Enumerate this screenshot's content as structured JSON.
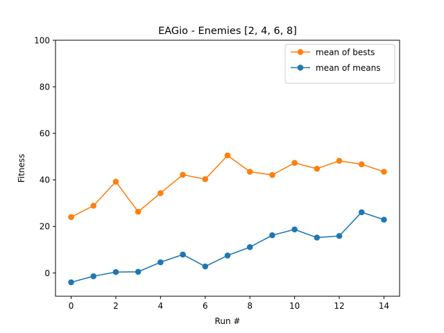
{
  "chart_data": {
    "type": "line",
    "title": "EAGio - Enemies [2, 4, 6, 8]",
    "xlabel": "Run #",
    "ylabel": "Fitness",
    "xlim": [
      -0.7,
      14.7
    ],
    "ylim": [
      -10,
      100
    ],
    "xticks": [
      0,
      2,
      4,
      6,
      8,
      10,
      12,
      14
    ],
    "yticks": [
      0,
      20,
      40,
      60,
      80,
      100
    ],
    "x": [
      0,
      1,
      2,
      3,
      4,
      5,
      6,
      7,
      8,
      9,
      10,
      11,
      12,
      13,
      14
    ],
    "series": [
      {
        "name": "mean of bests",
        "color": "#ff7f0e",
        "marker": "circle",
        "values": [
          24.0,
          28.9,
          39.2,
          26.3,
          34.3,
          42.2,
          40.3,
          50.5,
          43.5,
          42.1,
          47.3,
          44.8,
          48.2,
          46.7,
          43.5
        ]
      },
      {
        "name": "mean of means",
        "color": "#1f77b4",
        "marker": "circle",
        "values": [
          -4.0,
          -1.4,
          0.4,
          0.5,
          4.6,
          7.9,
          2.8,
          7.5,
          11.1,
          16.2,
          18.7,
          15.2,
          15.9,
          26.1,
          22.9
        ]
      }
    ],
    "grid": false,
    "legend_position": "top-right"
  }
}
